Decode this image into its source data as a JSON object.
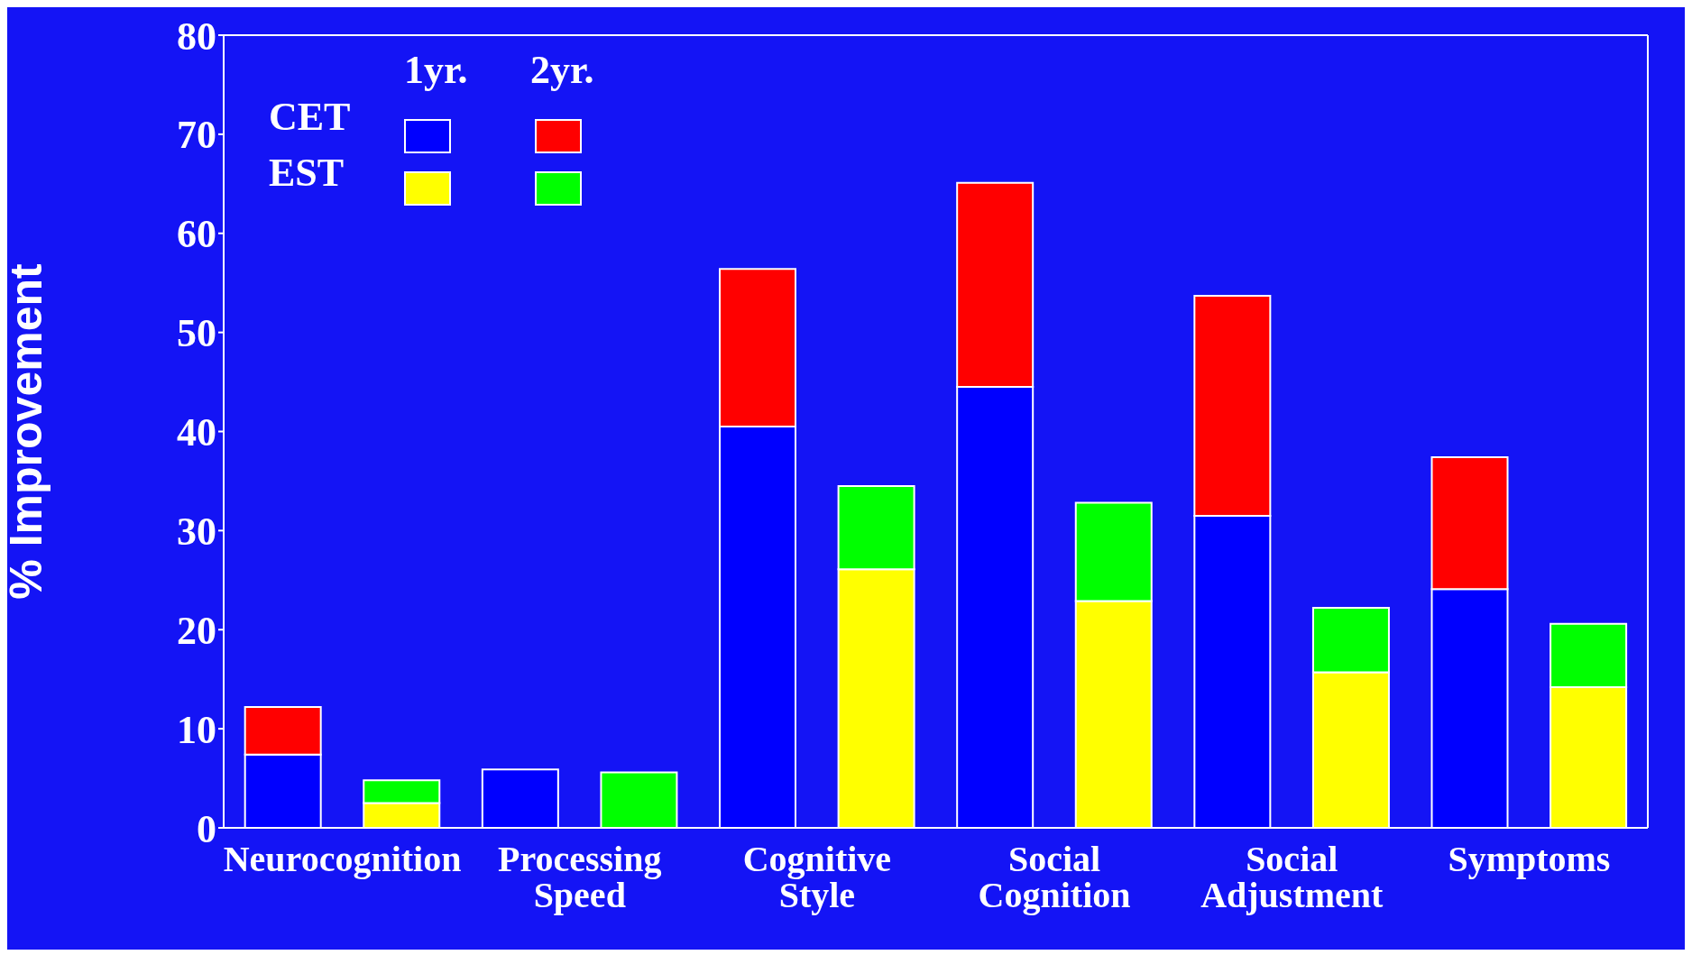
{
  "chart_data": {
    "type": "bar",
    "stacked": true,
    "ylabel": "% Improvement",
    "categories": [
      "Neurocognition",
      null,
      "Processing Speed",
      null,
      "Cognitive Style",
      null,
      "Social Cognition",
      null,
      "Social Adjustment",
      null,
      "Symptoms",
      null
    ],
    "series": [
      {
        "color": "#0000ff",
        "values": [
          7.4,
          null,
          5.9,
          null,
          40.5,
          null,
          44.5,
          null,
          31.5,
          null,
          24.1,
          null
        ]
      },
      {
        "color": "#ff0000",
        "values": [
          4.8,
          null,
          null,
          null,
          15.9,
          null,
          20.6,
          null,
          22.2,
          null,
          13.3,
          null
        ]
      },
      {
        "color": "#ffff00",
        "values": [
          null,
          2.5,
          null,
          null,
          null,
          26.1,
          null,
          22.9,
          null,
          15.7,
          null,
          14.2
        ]
      },
      {
        "color": "#00ff00",
        "values": [
          null,
          2.3,
          null,
          5.6,
          null,
          8.4,
          null,
          9.9,
          null,
          6.5,
          null,
          6.4
        ]
      }
    ],
    "annotations": [
      "1yr.",
      "2yr.",
      "CET",
      "EST"
    ],
    "ylim": [
      0,
      80
    ],
    "yticks": [
      0,
      10,
      20,
      30,
      40,
      50,
      60,
      70,
      80
    ]
  }
}
